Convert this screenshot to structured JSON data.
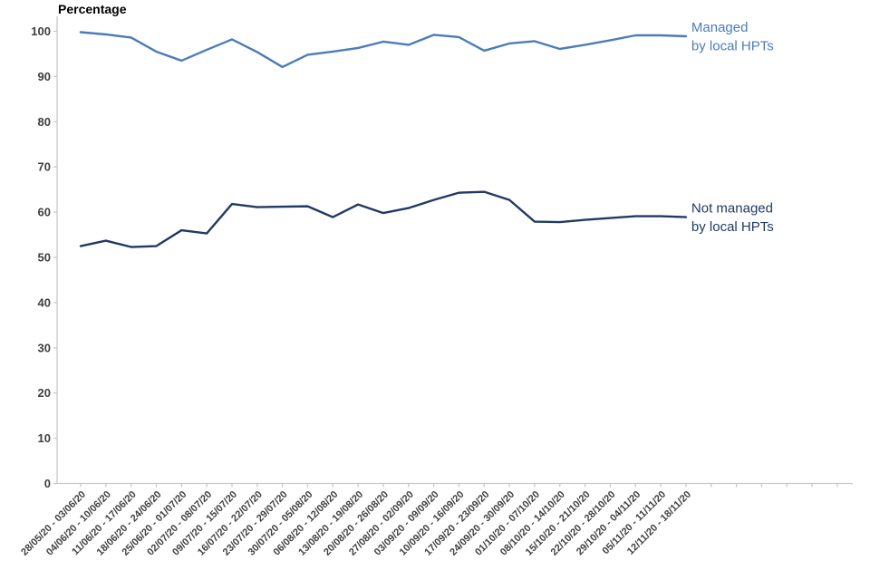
{
  "chart_data": {
    "type": "line",
    "title": "Percentage",
    "xlabel": "",
    "ylabel": "Percentage",
    "ylim": [
      0,
      100
    ],
    "yticks": [
      0,
      10,
      20,
      30,
      40,
      50,
      60,
      70,
      80,
      90,
      100
    ],
    "grid": false,
    "legend_position": "right-of-line-end",
    "axis_color": "#c9c9c9",
    "tick_label_color": "#3f3f3f",
    "categories": [
      "28/05/20 - 03/06/20",
      "04/06/20 - 10/06/20",
      "11/06/20 - 17/06/20",
      "18/06/20 - 24/06/20",
      "25/06/20 - 01/07/20",
      "02/07/20 - 08/07/20",
      "09/07/20 - 15/07/20",
      "16/07/20 - 22/07/20",
      "23/07/20 - 29/07/20",
      "30/07/20 - 05/08/20",
      "06/08/20 - 12/08/20",
      "13/08/20 - 19/08/20",
      "20/08/20 - 26/08/20",
      "27/08/20 - 02/09/20",
      "03/09/20 - 09/09/20",
      "10/09/20 - 16/09/20",
      "17/09/20 - 23/09/20",
      "24/09/20 - 30/09/20",
      "01/10/20 - 07/10/20",
      "08/10/20 - 14/10/20",
      "15/10/20 - 21/10/20",
      "22/10/20 - 28/10/20",
      "29/10/20 - 04/11/20",
      "05/11/20 - 11/11/20",
      "12/11/20 - 18/11/20"
    ],
    "series": [
      {
        "name": "Managed by local HPTs",
        "label_lines": [
          "Managed",
          "by local HPTs"
        ],
        "color": "#4b7cba",
        "values": [
          99.8,
          99.3,
          98.6,
          95.5,
          93.5,
          95.9,
          98.2,
          95.4,
          92.1,
          94.8,
          95.5,
          96.3,
          97.7,
          97.0,
          99.2,
          98.7,
          95.7,
          97.3,
          97.8,
          96.1,
          97.0,
          98.0,
          99.1,
          99.1,
          98.9
        ]
      },
      {
        "name": "Not managed by local HPTs",
        "label_lines": [
          "Not managed",
          "by local HPTs"
        ],
        "color": "#1f3a63",
        "values": [
          52.5,
          53.7,
          52.3,
          52.5,
          56.0,
          55.3,
          61.8,
          61.1,
          61.2,
          61.3,
          58.9,
          61.7,
          59.8,
          60.9,
          62.7,
          64.3,
          64.5,
          62.7,
          57.9,
          57.8,
          58.3,
          58.7,
          59.1,
          59.1,
          58.9
        ]
      }
    ]
  }
}
